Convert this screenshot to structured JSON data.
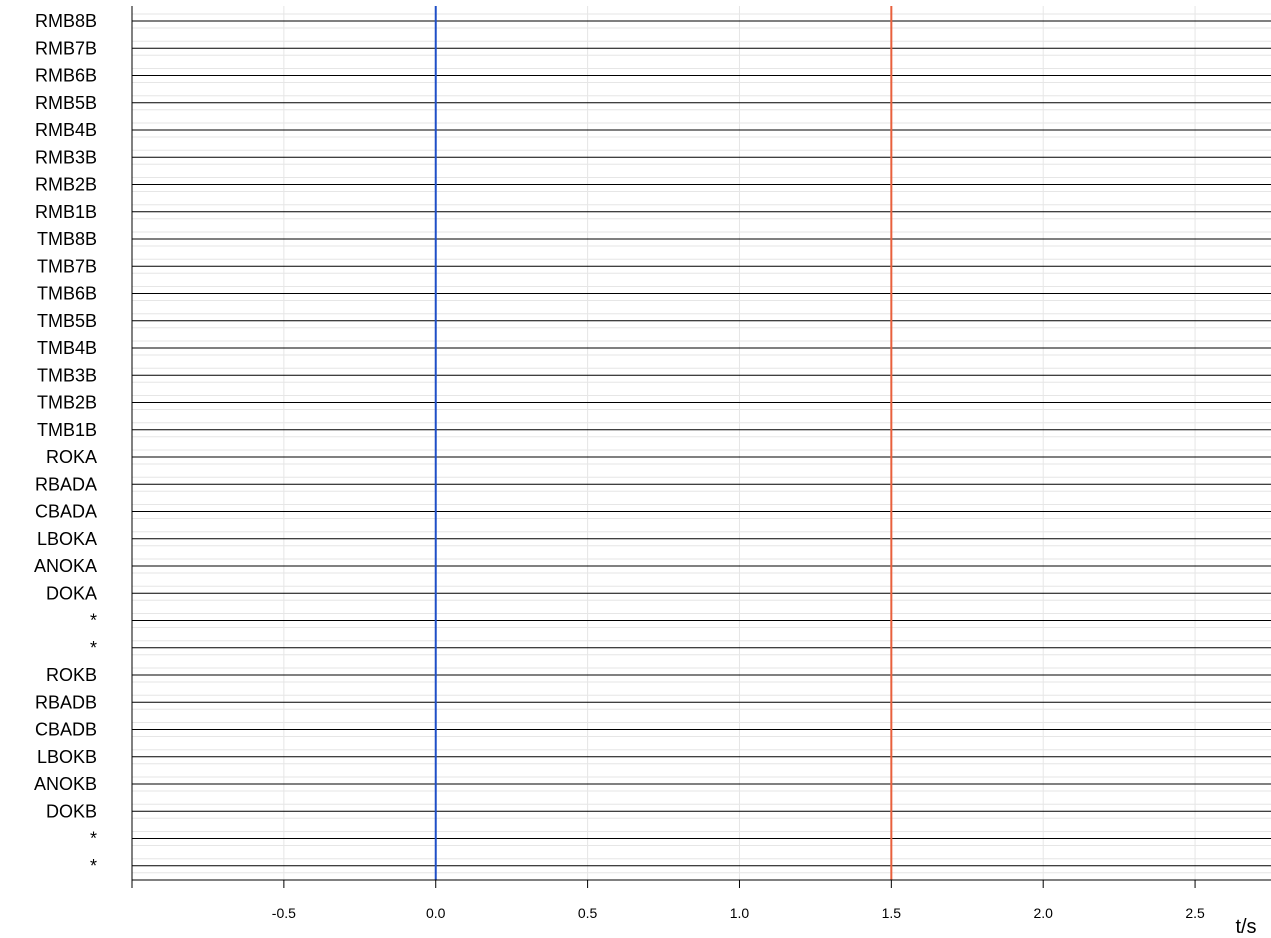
{
  "chart_data": {
    "type": "line",
    "channels": [
      "RMB8B",
      "RMB7B",
      "RMB6B",
      "RMB5B",
      "RMB4B",
      "RMB3B",
      "RMB2B",
      "RMB1B",
      "TMB8B",
      "TMB7B",
      "TMB6B",
      "TMB5B",
      "TMB4B",
      "TMB3B",
      "TMB2B",
      "TMB1B",
      "ROKA",
      "RBADA",
      "CBADA",
      "LBOKA",
      "ANOKA",
      "DOKA",
      "*",
      "*",
      "ROKB",
      "RBADB",
      "CBADB",
      "LBOKB",
      "ANOKB",
      "DOKB",
      "*",
      "*"
    ],
    "x_ticks": [
      -0.5,
      0.0,
      0.5,
      1.0,
      1.5,
      2.0,
      2.5
    ],
    "x_tick_labels": [
      "-0.5",
      "0.0",
      "0.5",
      "1.0",
      "1.5",
      "2.0",
      "2.5"
    ],
    "xlabel": "t/s",
    "xlim": [
      -1.0,
      2.75
    ],
    "markers": [
      {
        "t": 0.0,
        "color": "#1f4fc7"
      },
      {
        "t": 1.5,
        "color": "#e8603c"
      }
    ],
    "grid": true,
    "trace_color": "#000000",
    "grid_color": "#e6e6e6"
  }
}
